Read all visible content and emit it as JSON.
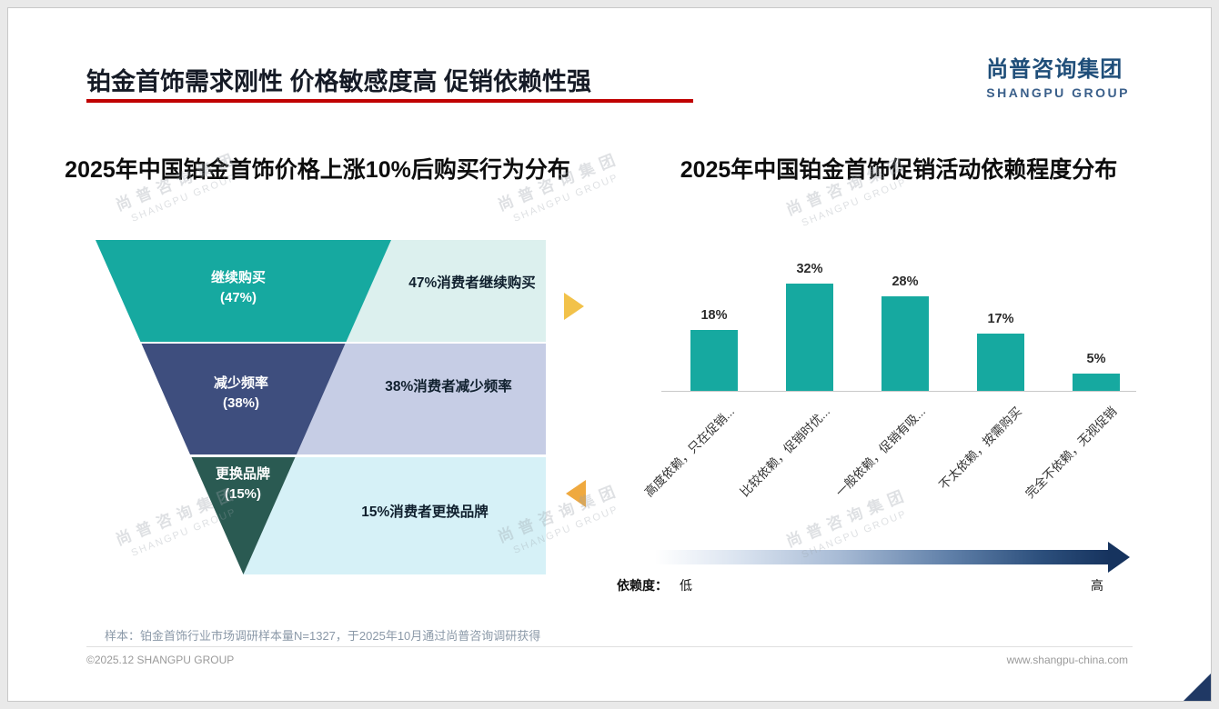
{
  "slide": {
    "title": "铂金首饰需求刚性 价格敏感度高 促销依赖性强",
    "sample_note": "样本：铂金首饰行业市场调研样本量N=1327，于2025年10月通过尚普咨询调研获得",
    "footer_left": "©2025.12 SHANGPU GROUP",
    "footer_right": "www.shangpu-china.com"
  },
  "logo": {
    "cn": "尚普咨询集团",
    "en": "SHANGPU GROUP"
  },
  "watermark": {
    "cn": "尚普咨询集团",
    "en": "SHANGPU GROUP"
  },
  "colors": {
    "title_underline": "#C00000",
    "funnel_level1": "#16A9A0",
    "funnel_level2": "#3E4E7E",
    "funnel_level3": "#2A5A52",
    "note_box1": "#DCF0EE",
    "note_box2": "#C6CDE5",
    "note_box3": "#D6F1F7",
    "bar_teal": "#16A9A0",
    "arrow_right_yellow": "#F2C24A",
    "arrow_left_orange": "#EFA93F",
    "gradient_dark_blue": "#16335E",
    "corner_navy": "#1F3864",
    "logo_blue": "#1F4E79"
  },
  "chart_data": [
    {
      "type": "funnel",
      "title": "2025年中国铂金首饰价格上涨10%后购买行为分布",
      "categories": [
        "继续购买",
        "减少频率",
        "更换品牌"
      ],
      "values": [
        47,
        38,
        15
      ],
      "pct_labels": [
        "(47%)",
        "(38%)",
        "(15%)"
      ],
      "annotations": [
        "47%消费者继续购买",
        "38%消费者减少频率",
        "15%消费者更换品牌"
      ]
    },
    {
      "type": "bar",
      "title": "2025年中国铂金首饰促销活动依赖程度分布",
      "categories": [
        "高度依赖，只在促销...",
        "比较依赖，促销时优...",
        "一般依赖，促销有吸...",
        "不太依赖，按需购买",
        "完全不依赖，无视促销"
      ],
      "values": [
        18,
        32,
        28,
        17,
        5
      ],
      "value_labels": [
        "18%",
        "32%",
        "28%",
        "17%",
        "5%"
      ],
      "ylim": [
        0,
        35
      ],
      "grid": false,
      "legend": {
        "label": "依赖度：",
        "low": "低",
        "high": "高"
      }
    }
  ]
}
